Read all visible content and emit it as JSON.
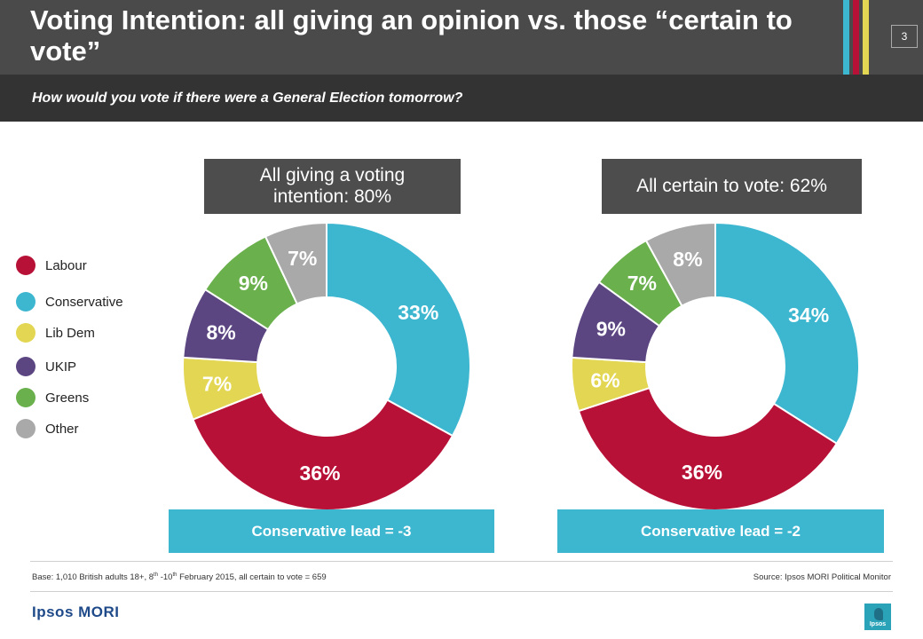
{
  "header": {
    "title": "Voting Intention: all giving an opinion vs. those “certain to vote”",
    "page_number": "3",
    "subtitle": "How would you vote if there were a General Election tomorrow?"
  },
  "legend": {
    "items": [
      {
        "label": "Labour",
        "color": "#b81137"
      },
      {
        "label": "Conservative",
        "color": "#3db6d0"
      },
      {
        "label": "Lib Dem",
        "color": "#e3d652"
      },
      {
        "label": "UKIP",
        "color": "#5b4682"
      },
      {
        "label": "Greens",
        "color": "#6ab04c"
      },
      {
        "label": "Other",
        "color": "#a9a9a9"
      }
    ]
  },
  "chart_data": [
    {
      "type": "pie",
      "subtype": "donut",
      "title": "All giving a voting intention: 80%",
      "categories": [
        "Conservative",
        "Labour",
        "Lib Dem",
        "UKIP",
        "Greens",
        "Other"
      ],
      "values": [
        33,
        36,
        7,
        8,
        9,
        7
      ],
      "labels": [
        "33%",
        "36%",
        "7%",
        "8%",
        "9%",
        "7%"
      ],
      "colors": [
        "#3db6d0",
        "#b81137",
        "#e3d652",
        "#5b4682",
        "#6ab04c",
        "#a9a9a9"
      ],
      "label_colors": [
        "#ffffff",
        "#ffffff",
        "#ffffff",
        "#ffffff",
        "#ffffff",
        "#ffffff"
      ],
      "annotation": "Conservative lead = -3"
    },
    {
      "type": "pie",
      "subtype": "donut",
      "title": "All certain to vote: 62%",
      "categories": [
        "Conservative",
        "Labour",
        "Lib Dem",
        "UKIP",
        "Greens",
        "Other"
      ],
      "values": [
        34,
        36,
        6,
        9,
        7,
        8
      ],
      "labels": [
        "34%",
        "36%",
        "6%",
        "9%",
        "7%",
        "8%"
      ],
      "colors": [
        "#3db6d0",
        "#b81137",
        "#e3d652",
        "#5b4682",
        "#6ab04c",
        "#a9a9a9"
      ],
      "label_colors": [
        "#ffffff",
        "#ffffff",
        "#ffffff",
        "#ffffff",
        "#ffffff",
        "#ffffff"
      ],
      "annotation": "Conservative lead = -2"
    }
  ],
  "footer": {
    "base_prefix": "Base: 1,010 British adults 18+, 8",
    "base_sup1": "th",
    "base_mid": " -10",
    "base_sup2": "th",
    "base_suffix": " February 2015, all certain to vote = 659",
    "source": "Source: Ipsos MORI Political Monitor",
    "brand": "Ipsos MORI",
    "logo_text": "Ipsos"
  }
}
